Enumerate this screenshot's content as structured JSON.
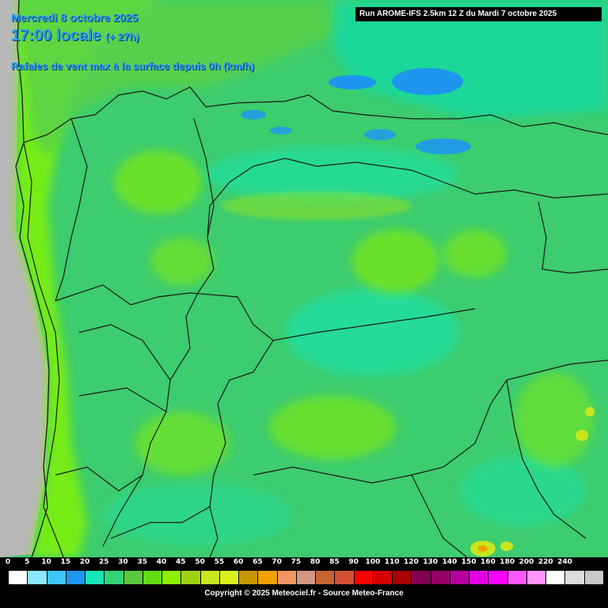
{
  "header": {
    "date_line": "Mercredi 8 octobre 2025",
    "time_line": "17:00 locale",
    "lead_time": "(+ 27h)",
    "variable": "Rafales de vent max à la surface depuis 0h (km/h)",
    "run_info": "Run AROME-IFS 2.5km 12 Z du Mardi 7 octobre 2025"
  },
  "legend": {
    "ticks": [
      "0",
      "5",
      "10",
      "15",
      "20",
      "25",
      "30",
      "35",
      "40",
      "45",
      "50",
      "55",
      "60",
      "65",
      "70",
      "75",
      "80",
      "85",
      "90",
      "100",
      "110",
      "120",
      "130",
      "140",
      "150",
      "160",
      "180",
      "200",
      "220",
      "240"
    ],
    "colors": [
      "#ffffff",
      "#8ce6ff",
      "#3cc8ff",
      "#1e96f0",
      "#19e6b4",
      "#32d278",
      "#5ac83c",
      "#64dc14",
      "#8cf000",
      "#a0d214",
      "#c8e61e",
      "#dcf01e",
      "#c89600",
      "#f0a000",
      "#f09664",
      "#d29682",
      "#c86432",
      "#d25032",
      "#ff0000",
      "#d20000",
      "#aa0000",
      "#820050",
      "#960064",
      "#b400a0",
      "#e100e1",
      "#ff00ff",
      "#ff5aff",
      "#ff96ff",
      "#ffffff",
      "#dcdcdc",
      "#c8c8c8"
    ],
    "copyright": "Copyright © 2025 Meteociel.fr - Source Meteo-France"
  },
  "map": {
    "land_color": "#3dcc6e",
    "sea_color": "#b8b8b8",
    "region_outline_color": "#1a1a1a"
  }
}
